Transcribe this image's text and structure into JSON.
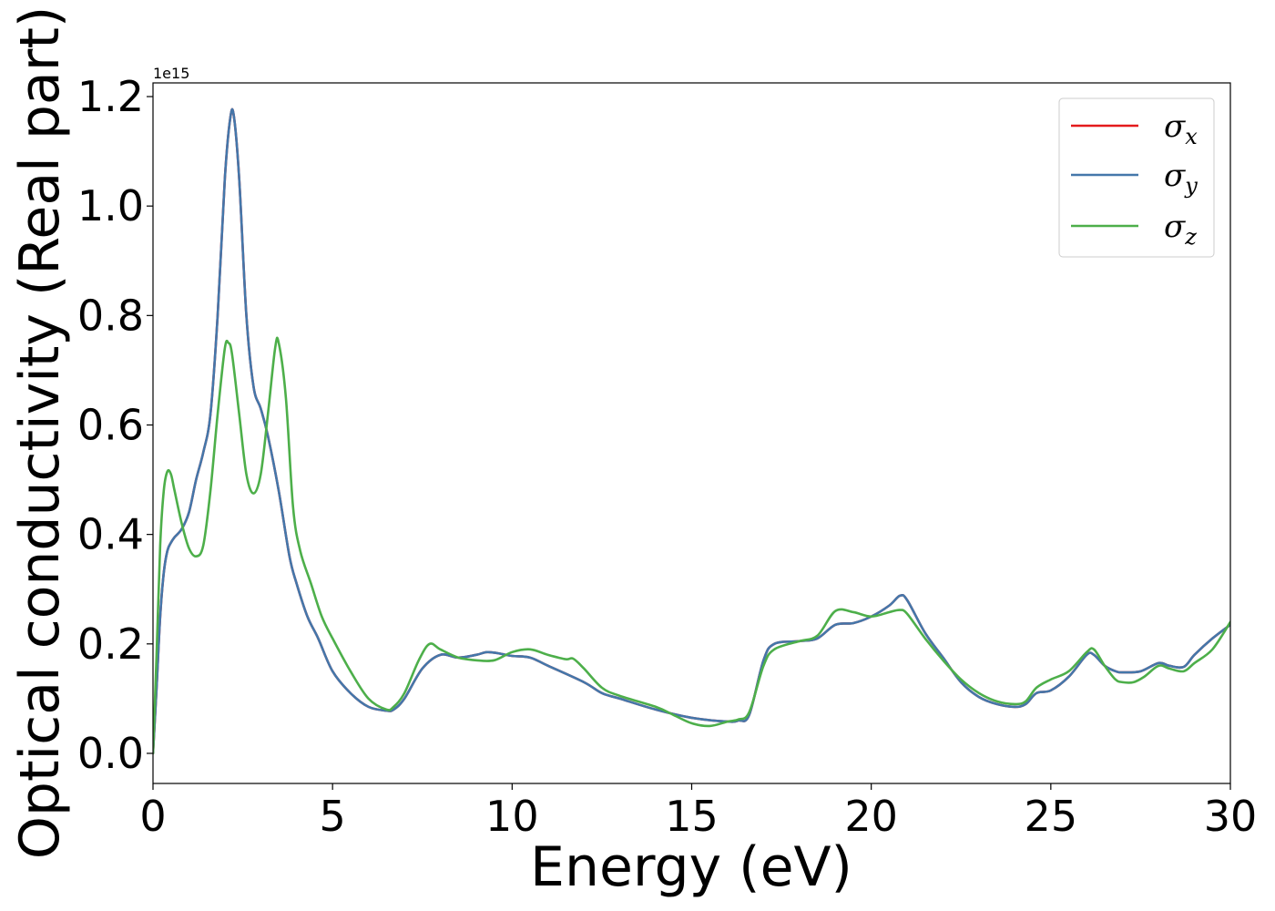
{
  "chart_data": {
    "type": "line",
    "xlabel": "Energy (eV)",
    "ylabel": "Optical conductivity (Real part)",
    "offset_text": "1e15",
    "xlim": [
      0,
      30
    ],
    "ylim": [
      -0.055,
      1.225
    ],
    "x_ticks": [
      0,
      5,
      10,
      15,
      20,
      25,
      30
    ],
    "x_tick_labels": [
      "0",
      "5",
      "10",
      "15",
      "20",
      "25",
      "30"
    ],
    "y_ticks": [
      0.0,
      0.2,
      0.4,
      0.6,
      0.8,
      1.0,
      1.2
    ],
    "y_tick_labels": [
      "0.0",
      "0.2",
      "0.4",
      "0.6",
      "0.8",
      "1.0",
      "1.2"
    ],
    "grid": false,
    "legend_position": "top-right",
    "series": [
      {
        "name": "σx",
        "color": "#e41a1c",
        "x": [
          0,
          0.1,
          0.2,
          0.3,
          0.4,
          0.5,
          0.6,
          0.8,
          1.0,
          1.2,
          1.4,
          1.6,
          1.8,
          2.0,
          2.15,
          2.25,
          2.4,
          2.6,
          2.8,
          3.0,
          3.2,
          3.5,
          3.8,
          4.0,
          4.3,
          4.6,
          5.0,
          5.5,
          6.0,
          6.5,
          6.7,
          7.0,
          7.5,
          8.0,
          8.5,
          9.0,
          9.3,
          9.6,
          10.0,
          10.5,
          11.0,
          12.0,
          12.5,
          13.0,
          14.0,
          15.0,
          16.0,
          16.3,
          16.6,
          17.0,
          17.3,
          18.0,
          18.5,
          19.0,
          19.5,
          20.0,
          20.5,
          20.8,
          21.0,
          21.5,
          22.0,
          22.5,
          23.0,
          23.5,
          24.0,
          24.3,
          24.6,
          25.0,
          25.5,
          26.0,
          26.2,
          26.5,
          26.8,
          27.0,
          27.5,
          28.0,
          28.3,
          28.7,
          29.0,
          29.5,
          30.0
        ],
        "values": [
          0.0,
          0.12,
          0.25,
          0.33,
          0.37,
          0.385,
          0.395,
          0.41,
          0.44,
          0.5,
          0.55,
          0.62,
          0.8,
          1.05,
          1.16,
          1.165,
          1.05,
          0.8,
          0.67,
          0.63,
          0.58,
          0.48,
          0.36,
          0.31,
          0.25,
          0.21,
          0.15,
          0.11,
          0.085,
          0.078,
          0.08,
          0.1,
          0.155,
          0.18,
          0.175,
          0.18,
          0.185,
          0.183,
          0.178,
          0.175,
          0.16,
          0.13,
          0.11,
          0.1,
          0.08,
          0.065,
          0.058,
          0.06,
          0.07,
          0.17,
          0.2,
          0.205,
          0.21,
          0.235,
          0.238,
          0.25,
          0.27,
          0.288,
          0.28,
          0.22,
          0.175,
          0.13,
          0.103,
          0.09,
          0.085,
          0.09,
          0.11,
          0.115,
          0.14,
          0.18,
          0.18,
          0.16,
          0.15,
          0.148,
          0.15,
          0.165,
          0.16,
          0.158,
          0.18,
          0.21,
          0.235
        ]
      },
      {
        "name": "σy",
        "color": "#4477aa",
        "x": [
          0,
          0.1,
          0.2,
          0.3,
          0.4,
          0.5,
          0.6,
          0.8,
          1.0,
          1.2,
          1.4,
          1.6,
          1.8,
          2.0,
          2.15,
          2.25,
          2.4,
          2.6,
          2.8,
          3.0,
          3.2,
          3.5,
          3.8,
          4.0,
          4.3,
          4.6,
          5.0,
          5.5,
          6.0,
          6.5,
          6.7,
          7.0,
          7.5,
          8.0,
          8.5,
          9.0,
          9.3,
          9.6,
          10.0,
          10.5,
          11.0,
          12.0,
          12.5,
          13.0,
          14.0,
          15.0,
          16.0,
          16.3,
          16.6,
          17.0,
          17.3,
          18.0,
          18.5,
          19.0,
          19.5,
          20.0,
          20.5,
          20.8,
          21.0,
          21.5,
          22.0,
          22.5,
          23.0,
          23.5,
          24.0,
          24.3,
          24.6,
          25.0,
          25.5,
          26.0,
          26.2,
          26.5,
          26.8,
          27.0,
          27.5,
          28.0,
          28.3,
          28.7,
          29.0,
          29.5,
          30.0
        ],
        "values": [
          0.0,
          0.12,
          0.25,
          0.33,
          0.37,
          0.385,
          0.395,
          0.41,
          0.44,
          0.5,
          0.55,
          0.62,
          0.8,
          1.05,
          1.16,
          1.165,
          1.05,
          0.8,
          0.67,
          0.63,
          0.58,
          0.48,
          0.36,
          0.31,
          0.25,
          0.21,
          0.15,
          0.11,
          0.085,
          0.078,
          0.08,
          0.1,
          0.155,
          0.18,
          0.175,
          0.18,
          0.185,
          0.183,
          0.178,
          0.175,
          0.16,
          0.13,
          0.11,
          0.1,
          0.08,
          0.065,
          0.058,
          0.06,
          0.07,
          0.17,
          0.2,
          0.205,
          0.21,
          0.235,
          0.238,
          0.25,
          0.27,
          0.288,
          0.28,
          0.22,
          0.175,
          0.13,
          0.103,
          0.09,
          0.085,
          0.09,
          0.11,
          0.115,
          0.14,
          0.18,
          0.18,
          0.16,
          0.15,
          0.148,
          0.15,
          0.165,
          0.16,
          0.158,
          0.18,
          0.21,
          0.235
        ]
      },
      {
        "name": "σz",
        "color": "#4daf4a",
        "x": [
          0,
          0.1,
          0.2,
          0.3,
          0.4,
          0.5,
          0.6,
          0.8,
          1.0,
          1.2,
          1.4,
          1.6,
          1.8,
          2.0,
          2.1,
          2.2,
          2.4,
          2.6,
          2.8,
          3.0,
          3.2,
          3.4,
          3.5,
          3.7,
          3.9,
          4.1,
          4.4,
          4.7,
          5.0,
          5.5,
          6.0,
          6.5,
          6.7,
          7.0,
          7.4,
          7.7,
          8.0,
          8.5,
          9.0,
          9.5,
          10.0,
          10.5,
          11.0,
          11.5,
          11.7,
          12.0,
          12.5,
          13.0,
          14.0,
          14.5,
          15.0,
          15.5,
          16.0,
          16.3,
          16.6,
          17.0,
          17.3,
          18.0,
          18.5,
          19.0,
          19.5,
          20.0,
          20.5,
          20.8,
          21.0,
          21.5,
          22.0,
          22.5,
          23.0,
          23.5,
          24.0,
          24.3,
          24.6,
          25.0,
          25.5,
          26.0,
          26.2,
          26.5,
          26.8,
          27.0,
          27.3,
          27.6,
          28.0,
          28.3,
          28.7,
          29.0,
          29.5,
          30.0
        ],
        "values": [
          0.0,
          0.18,
          0.38,
          0.48,
          0.515,
          0.51,
          0.48,
          0.42,
          0.375,
          0.36,
          0.38,
          0.48,
          0.62,
          0.74,
          0.75,
          0.73,
          0.62,
          0.51,
          0.475,
          0.51,
          0.62,
          0.74,
          0.75,
          0.65,
          0.45,
          0.37,
          0.31,
          0.25,
          0.21,
          0.15,
          0.1,
          0.08,
          0.085,
          0.11,
          0.17,
          0.2,
          0.19,
          0.175,
          0.17,
          0.17,
          0.185,
          0.19,
          0.18,
          0.172,
          0.173,
          0.155,
          0.12,
          0.105,
          0.085,
          0.07,
          0.055,
          0.05,
          0.058,
          0.062,
          0.075,
          0.16,
          0.19,
          0.205,
          0.215,
          0.26,
          0.258,
          0.25,
          0.258,
          0.262,
          0.255,
          0.21,
          0.17,
          0.135,
          0.11,
          0.095,
          0.09,
          0.095,
          0.12,
          0.135,
          0.15,
          0.185,
          0.19,
          0.16,
          0.135,
          0.13,
          0.13,
          0.14,
          0.16,
          0.155,
          0.15,
          0.165,
          0.19,
          0.24
        ]
      }
    ]
  }
}
